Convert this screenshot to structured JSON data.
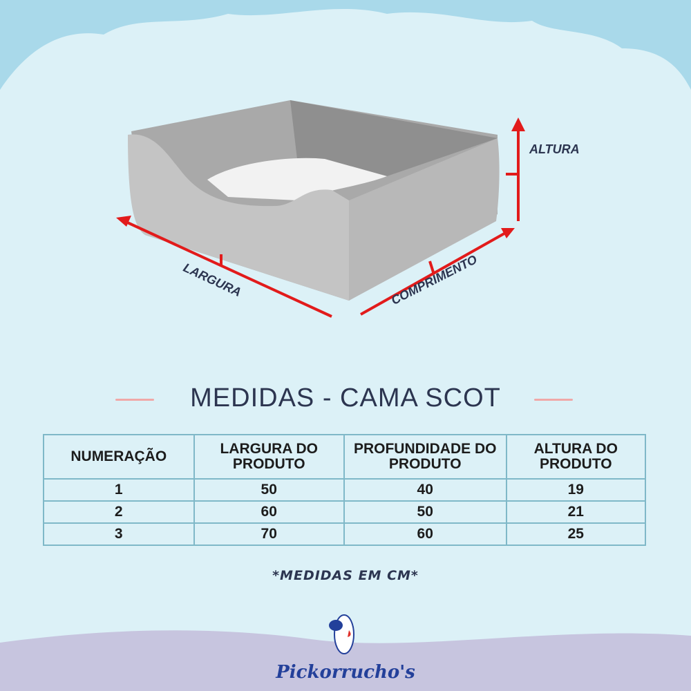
{
  "diagram": {
    "labels": {
      "height": "ALTURA",
      "width": "LARGURA",
      "length": "COMPRIMENTO"
    },
    "colors": {
      "arrow": "#e21b1b",
      "bed": "#bdbdbd",
      "cushion": "#f2f2f2"
    }
  },
  "title": "MEDIDAS - CAMA SCOT",
  "table": {
    "headers": [
      "NUMERAÇÃO",
      "LARGURA DO PRODUTO",
      "PROFUNDIDADE DO PRODUTO",
      "ALTURA DO PRODUTO"
    ],
    "rows": [
      [
        "1",
        "50",
        "40",
        "19"
      ],
      [
        "2",
        "60",
        "50",
        "21"
      ],
      [
        "3",
        "70",
        "60",
        "25"
      ]
    ]
  },
  "note": "*MEDIDAS EM CM*",
  "brand": {
    "name": "Pickorrucho's",
    "color": "#23409a"
  }
}
